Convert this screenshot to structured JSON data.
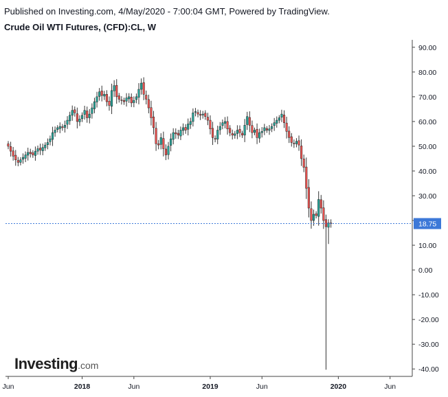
{
  "header": {
    "published": "Published on Investing.com, 4/May/2020 - 7:00:04 GMT, Powered by TradingView.",
    "title": "Crude Oil WTI Futures, (CFD):CL, W"
  },
  "logo": {
    "main": "Investing",
    "suffix": ".com"
  },
  "colors": {
    "up": "#26a69a",
    "down": "#ef5350",
    "wick": "#333333",
    "last_price": "#3c78d8"
  },
  "chart_data": {
    "type": "candlestick",
    "title": "Crude Oil WTI Futures, (CFD):CL, W",
    "interval": "W",
    "ylim": [
      -43,
      93
    ],
    "y_ticks": [
      "90.00",
      "80.00",
      "70.00",
      "60.00",
      "50.00",
      "40.00",
      "30.00",
      "20.00",
      "10.00",
      "0.00",
      "-10.00",
      "-20.00",
      "-30.00",
      "-40.00"
    ],
    "y_tick_values": [
      90,
      80,
      70,
      60,
      50,
      40,
      30,
      20,
      10,
      0,
      -10,
      -20,
      -30,
      -40
    ],
    "x_ticks": [
      {
        "label": "Jun",
        "week": 0,
        "bold": false
      },
      {
        "label": "2018",
        "week": 30,
        "bold": true
      },
      {
        "label": "Jun",
        "week": 51,
        "bold": false
      },
      {
        "label": "2019",
        "week": 82,
        "bold": true
      },
      {
        "label": "Jun",
        "week": 103,
        "bold": false
      },
      {
        "label": "2020",
        "week": 134,
        "bold": true
      },
      {
        "label": "Jun",
        "week": 155,
        "bold": false
      }
    ],
    "last_price": 18.75,
    "last_price_label": "18.75",
    "grid": false,
    "closes": [
      50.0,
      48.0,
      46.0,
      44.5,
      43.5,
      44.5,
      45.5,
      46.5,
      47.5,
      47.0,
      46.5,
      48.0,
      49.0,
      48.5,
      49.5,
      50.5,
      51.5,
      53.0,
      55.5,
      56.5,
      57.5,
      58.0,
      57.5,
      58.5,
      60.5,
      62.5,
      64.5,
      63.5,
      60.0,
      61.0,
      62.5,
      64.5,
      61.5,
      63.0,
      65.5,
      68.0,
      70.0,
      72.0,
      70.5,
      71.0,
      68.0,
      66.5,
      72.5,
      74.5,
      70.0,
      69.0,
      68.5,
      68.0,
      69.5,
      70.0,
      67.5,
      68.5,
      70.0,
      73.0,
      75.5,
      71.0,
      69.0,
      65.5,
      61.5,
      57.5,
      51.0,
      50.5,
      53.5,
      49.0,
      46.5,
      50.0,
      53.0,
      55.5,
      55.0,
      54.5,
      56.5,
      57.5,
      56.5,
      59.0,
      60.0,
      63.5,
      64.0,
      63.0,
      62.5,
      63.0,
      62.0,
      60.5,
      57.0,
      53.5,
      53.0,
      56.5,
      58.0,
      59.5,
      60.0,
      57.0,
      55.5,
      54.5,
      55.0,
      56.5,
      55.5,
      54.5,
      58.5,
      62.0,
      58.5,
      55.5,
      56.5,
      53.5,
      55.5,
      56.0,
      57.5,
      56.5,
      57.0,
      58.0,
      59.5,
      60.5,
      61.5,
      63.0,
      59.5,
      56.0,
      53.5,
      51.5,
      51.0,
      52.0,
      50.5,
      45.0,
      41.5,
      33.0,
      25.0,
      20.0,
      22.5,
      22.0,
      28.5,
      25.0,
      20.0,
      17.5,
      19.0,
      18.75
    ]
  }
}
